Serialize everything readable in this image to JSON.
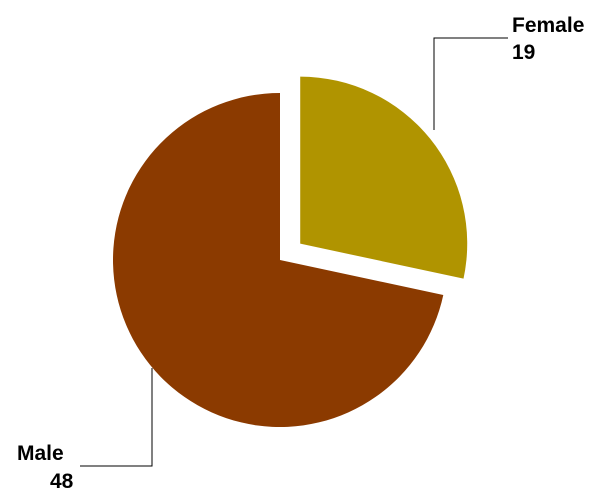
{
  "chart_data": {
    "type": "pie",
    "exploded": "Female",
    "slices": [
      {
        "name": "Female",
        "value": 19,
        "color": "#b09400"
      },
      {
        "name": "Male",
        "value": 48,
        "color": "#8b3a00"
      }
    ],
    "labels": [
      {
        "name": "Female",
        "value": "19"
      },
      {
        "name": "Male",
        "value": "48"
      }
    ]
  }
}
